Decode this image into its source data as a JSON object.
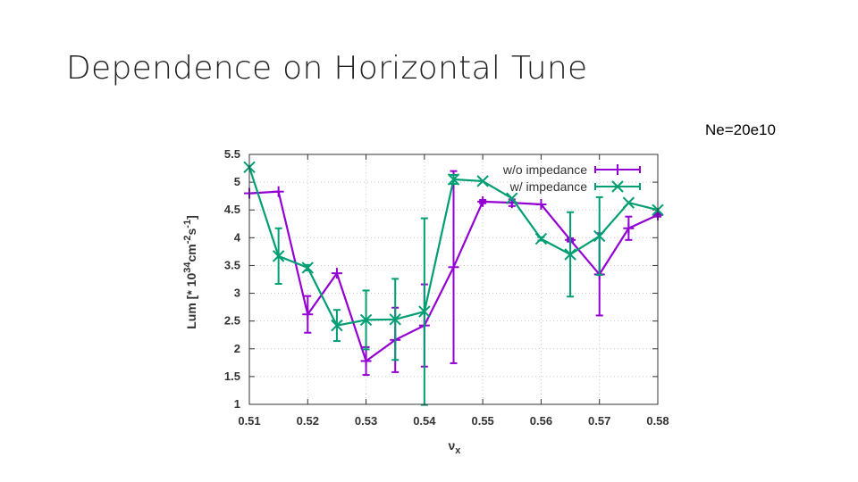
{
  "slide": {
    "title": "Dependence on Horizontal Tune",
    "annotation": "Ne=20e10"
  },
  "chart_data": {
    "type": "line",
    "title": "",
    "xlabel_main": "ν",
    "xlabel_sub": "x",
    "ylabel_prefix": "Lum [* 10",
    "ylabel_exp1": "34",
    "ylabel_mid": "cm",
    "ylabel_exp2": "-2",
    "ylabel_mid2": "s",
    "ylabel_exp3": "-1",
    "ylabel_suffix": "]",
    "xlim": [
      0.51,
      0.58
    ],
    "ylim": [
      1,
      5.5
    ],
    "xticks": [
      0.51,
      0.52,
      0.53,
      0.54,
      0.55,
      0.56,
      0.57,
      0.58
    ],
    "xtick_labels": [
      "0.51",
      "0.52",
      "0.53",
      "0.54",
      "0.55",
      "0.56",
      "0.57",
      "0.58"
    ],
    "yticks": [
      1,
      1.5,
      2,
      2.5,
      3,
      3.5,
      4,
      4.5,
      5,
      5.5
    ],
    "ytick_labels": [
      "1",
      "1.5",
      "2",
      "2.5",
      "3",
      "3.5",
      "4",
      "4.5",
      "5",
      "5.5"
    ],
    "legend_position": "top-right",
    "series": [
      {
        "name": "w/o impedance",
        "color": "#9400d3",
        "marker": "plus",
        "x": [
          0.51,
          0.515,
          0.52,
          0.525,
          0.53,
          0.535,
          0.54,
          0.545,
          0.55,
          0.555,
          0.56,
          0.565,
          0.57,
          0.575,
          0.58
        ],
        "y": [
          4.8,
          4.83,
          2.62,
          3.36,
          1.78,
          2.16,
          2.42,
          3.47,
          4.65,
          4.63,
          4.6,
          3.96,
          3.34,
          4.17,
          4.41
        ],
        "err": [
          0,
          0,
          0.33,
          0,
          0.25,
          0.58,
          0.74,
          1.73,
          0.03,
          0.06,
          0,
          0.03,
          0.74,
          0.21,
          0.03
        ]
      },
      {
        "name": "w/ impedance",
        "color": "#009e73",
        "marker": "cross",
        "x": [
          0.51,
          0.515,
          0.52,
          0.525,
          0.53,
          0.535,
          0.54,
          0.545,
          0.55,
          0.555,
          0.56,
          0.565,
          0.57,
          0.575,
          0.58
        ],
        "y": [
          5.27,
          3.67,
          3.46,
          2.42,
          2.52,
          2.53,
          2.67,
          5.05,
          5.02,
          4.71,
          3.98,
          3.7,
          4.03,
          4.63,
          4.5
        ],
        "err": [
          0,
          0.5,
          0.05,
          0.28,
          0.53,
          0.73,
          1.68,
          0.08,
          0,
          0,
          0.03,
          0.76,
          0.7,
          0,
          0
        ]
      }
    ]
  }
}
